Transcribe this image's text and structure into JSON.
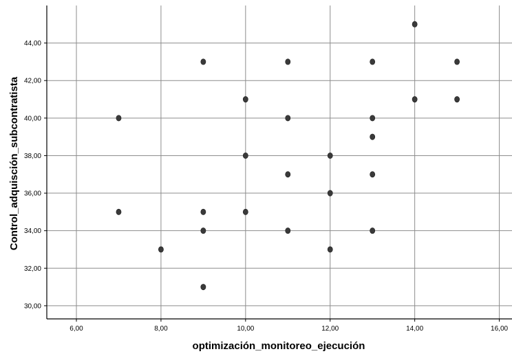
{
  "chart_data": {
    "type": "scatter",
    "title": "",
    "xlabel": "optimización_monitoreo_ejecución",
    "ylabel": "Control_adquisción_subcontratista",
    "xlim": [
      5.3,
      16.3
    ],
    "ylim": [
      29.3,
      46.0
    ],
    "xticks": [
      6,
      8,
      10,
      12,
      14,
      16
    ],
    "yticks": [
      30,
      32,
      34,
      36,
      38,
      40,
      42,
      44
    ],
    "xtick_labels": [
      "6,00",
      "8,00",
      "10,00",
      "12,00",
      "14,00",
      "16,00"
    ],
    "ytick_labels": [
      "30,00",
      "32,00",
      "34,00",
      "36,00",
      "38,00",
      "40,00",
      "42,00",
      "44,00"
    ],
    "grid": true,
    "legend": false,
    "colors": {
      "point": "#3a3a3a",
      "grid": "#8c8c8c",
      "axis": "#000000"
    },
    "points": [
      {
        "x": 7,
        "y": 40
      },
      {
        "x": 7,
        "y": 35
      },
      {
        "x": 8,
        "y": 33
      },
      {
        "x": 9,
        "y": 43
      },
      {
        "x": 9,
        "y": 35
      },
      {
        "x": 9,
        "y": 34
      },
      {
        "x": 9,
        "y": 31
      },
      {
        "x": 10,
        "y": 41
      },
      {
        "x": 10,
        "y": 38
      },
      {
        "x": 10,
        "y": 35
      },
      {
        "x": 11,
        "y": 43
      },
      {
        "x": 11,
        "y": 40
      },
      {
        "x": 11,
        "y": 37
      },
      {
        "x": 11,
        "y": 34
      },
      {
        "x": 12,
        "y": 38
      },
      {
        "x": 12,
        "y": 36
      },
      {
        "x": 12,
        "y": 33
      },
      {
        "x": 13,
        "y": 43
      },
      {
        "x": 13,
        "y": 40
      },
      {
        "x": 13,
        "y": 39
      },
      {
        "x": 13,
        "y": 37
      },
      {
        "x": 13,
        "y": 34
      },
      {
        "x": 14,
        "y": 45
      },
      {
        "x": 14,
        "y": 41
      },
      {
        "x": 15,
        "y": 43
      },
      {
        "x": 15,
        "y": 41
      }
    ]
  }
}
